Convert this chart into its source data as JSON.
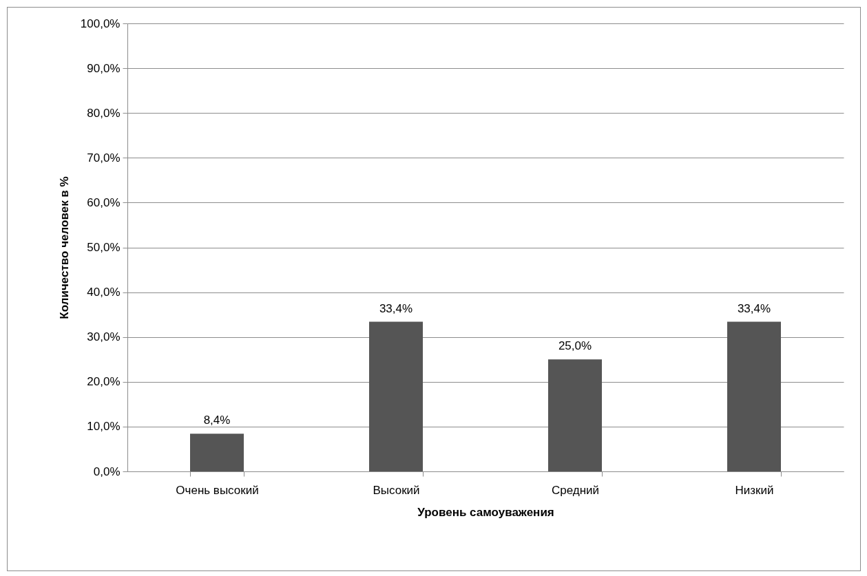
{
  "chart_data": {
    "type": "bar",
    "xlabel": "Уровень самоуважения",
    "ylabel": "Количество человек в %",
    "categories": [
      "Очень высокий",
      "Высокий",
      "Средний",
      "Низкий"
    ],
    "values": [
      8.4,
      33.4,
      25.0,
      33.4
    ],
    "value_labels": [
      "8,4%",
      "33,4%",
      "25,0%",
      "33,4%"
    ],
    "color": "#555555",
    "ylim": [
      0,
      100
    ],
    "yticks": [
      {
        "value": 0,
        "label": "0,0%"
      },
      {
        "value": 10,
        "label": "10,0%"
      },
      {
        "value": 20,
        "label": "20,0%"
      },
      {
        "value": 30,
        "label": "30,0%"
      },
      {
        "value": 40,
        "label": "40,0%"
      },
      {
        "value": 50,
        "label": "50,0%"
      },
      {
        "value": 60,
        "label": "60,0%"
      },
      {
        "value": 70,
        "label": "70,0%"
      },
      {
        "value": 80,
        "label": "80,0%"
      },
      {
        "value": 90,
        "label": "90,0%"
      },
      {
        "value": 100,
        "label": "100,0%"
      }
    ],
    "grid": "y"
  }
}
